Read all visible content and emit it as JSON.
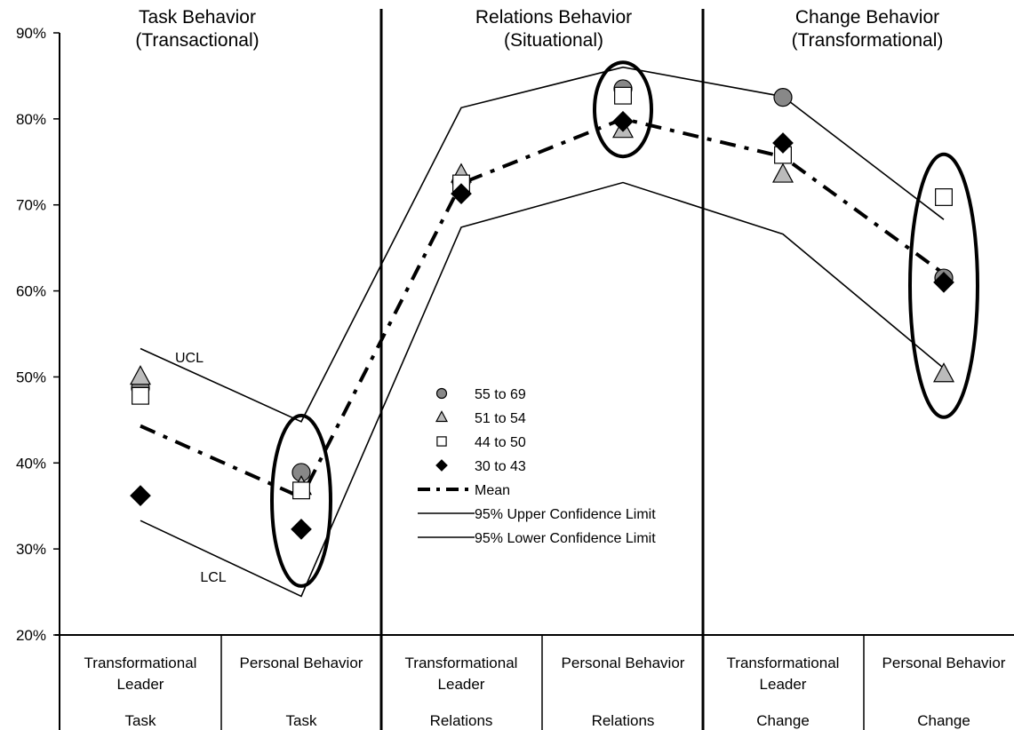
{
  "chart_data": {
    "type": "line",
    "ylim": [
      0.2,
      0.9
    ],
    "yticks": [
      {
        "value": 0.2,
        "label": "20%"
      },
      {
        "value": 0.3,
        "label": "30%"
      },
      {
        "value": 0.4,
        "label": "40%"
      },
      {
        "value": 0.5,
        "label": "50%"
      },
      {
        "value": 0.6,
        "label": "60%"
      },
      {
        "value": 0.7,
        "label": "70%"
      },
      {
        "value": 0.8,
        "label": "80%"
      },
      {
        "value": 0.9,
        "label": "90%"
      }
    ],
    "sections": [
      {
        "line1": "Task Behavior",
        "line2": "(Transactional)"
      },
      {
        "line1": "Relations Behavior",
        "line2": "(Situational)"
      },
      {
        "line1": "Change Behavior",
        "line2": "(Transformational)"
      }
    ],
    "categories": [
      {
        "line1": "Transformational",
        "line2": "Leader",
        "group": "Task"
      },
      {
        "line1": "Personal Behavior",
        "line2": "",
        "group": "Task"
      },
      {
        "line1": "Transformational",
        "line2": "Leader",
        "group": "Relations"
      },
      {
        "line1": "Personal Behavior",
        "line2": "",
        "group": "Relations"
      },
      {
        "line1": "Transformational",
        "line2": "Leader",
        "group": "Change"
      },
      {
        "line1": "Personal Behavior",
        "line2": "",
        "group": "Change"
      }
    ],
    "series": [
      {
        "name": "55 to 69",
        "marker": "circle",
        "color": "#888888",
        "values": [
          0.487,
          0.389,
          0.727,
          0.835,
          0.825,
          0.615
        ]
      },
      {
        "name": "51 to 54",
        "marker": "triangle",
        "color": "#bbbbbb",
        "values": [
          0.5,
          0.372,
          0.735,
          0.787,
          0.735,
          0.503
        ]
      },
      {
        "name": "44 to 50",
        "marker": "square",
        "color": "#ffffff",
        "values": [
          0.478,
          0.368,
          0.725,
          0.827,
          0.758,
          0.709
        ]
      },
      {
        "name": "30 to 43",
        "marker": "diamond",
        "color": "#000000",
        "values": [
          0.362,
          0.323,
          0.713,
          0.797,
          0.772,
          0.61
        ]
      },
      {
        "name": "Mean",
        "marker": "dashdot",
        "values": [
          0.443,
          0.36,
          0.725,
          0.8,
          0.756,
          0.62
        ]
      },
      {
        "name": "95% Upper Confidence Limit",
        "marker": "line",
        "values": [
          0.533,
          0.448,
          0.813,
          0.86,
          0.826,
          0.683
        ]
      },
      {
        "name": "95% Lower Confidence Limit",
        "marker": "line",
        "values": [
          0.333,
          0.245,
          0.674,
          0.726,
          0.666,
          0.51
        ]
      }
    ],
    "annotations": [
      {
        "text": "UCL"
      },
      {
        "text": "LCL"
      }
    ],
    "highlighted_categories": [
      1,
      3,
      5
    ],
    "grid": false,
    "legend_position": "center"
  }
}
